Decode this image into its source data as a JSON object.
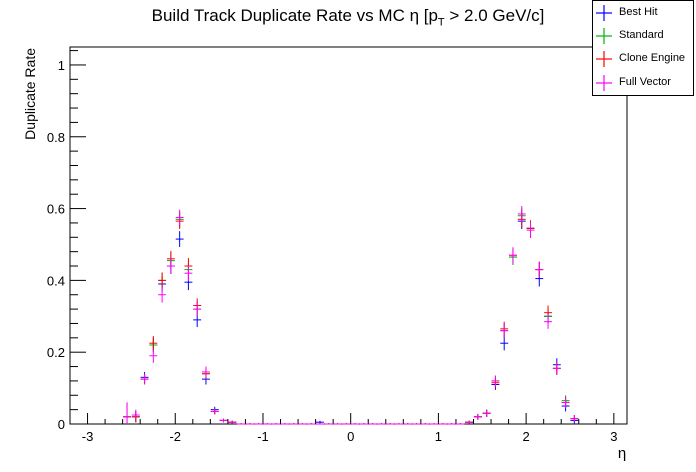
{
  "chart_data": {
    "type": "scatter",
    "title_main": "Build Track Duplicate Rate vs MC η [p",
    "title_sub": "T",
    "title_tail": " > 2.0 GeV/c]",
    "xlabel": "η",
    "ylabel": "Duplicate Rate",
    "xlim": [
      -3.2,
      3.15
    ],
    "ylim": [
      0,
      1.05
    ],
    "xticks": [
      -3,
      -2,
      -1,
      0,
      1,
      2,
      3
    ],
    "xtick_labels": [
      "-3",
      "-2",
      "-1",
      "0",
      "1",
      "2",
      "3"
    ],
    "yticks": [
      0,
      0.2,
      0.4,
      0.6,
      0.8,
      1
    ],
    "ytick_labels": [
      "0",
      "0.2",
      "0.4",
      "0.6",
      "0.8",
      "1"
    ],
    "legend_position": "top-right",
    "bin_half_width": 0.05,
    "x": [
      -2.55,
      -2.45,
      -2.35,
      -2.25,
      -2.15,
      -2.05,
      -1.95,
      -1.85,
      -1.75,
      -1.65,
      -1.55,
      -1.45,
      -1.35,
      -1.25,
      -1.15,
      -1.05,
      -0.95,
      -0.85,
      -0.75,
      -0.65,
      -0.55,
      -0.45,
      -0.35,
      -0.25,
      -0.15,
      -0.05,
      0.05,
      0.15,
      0.25,
      0.35,
      0.45,
      0.55,
      0.65,
      0.75,
      0.85,
      0.95,
      1.05,
      1.15,
      1.25,
      1.35,
      1.45,
      1.55,
      1.65,
      1.75,
      1.85,
      1.95,
      2.05,
      2.15,
      2.25,
      2.35,
      2.45,
      2.55
    ],
    "series": [
      {
        "name": "Best Hit",
        "color": "#0000ff",
        "values": [
          0.02,
          0.02,
          0.13,
          0.22,
          0.39,
          0.44,
          0.515,
          0.395,
          0.29,
          0.125,
          0.04,
          0.01,
          0.005,
          0.0,
          0.0,
          0.0,
          0.0,
          0.0,
          0.0,
          0.0,
          0.0,
          0.0,
          0.005,
          0.0,
          0.0,
          0.0,
          0.0,
          0.0,
          0.0,
          0.0,
          0.0,
          0.0,
          0.0,
          0.0,
          0.0,
          0.0,
          0.0,
          0.0,
          0.0,
          0.005,
          0.02,
          0.03,
          0.11,
          0.225,
          0.465,
          0.565,
          0.545,
          0.405,
          0.3,
          0.165,
          0.05,
          0.01
        ],
        "errors": [
          0.04,
          0.015,
          0.015,
          0.02,
          0.022,
          0.022,
          0.022,
          0.022,
          0.02,
          0.015,
          0.008,
          0.005,
          0.004,
          0.002,
          0.002,
          0.002,
          0.002,
          0.002,
          0.002,
          0.002,
          0.002,
          0.002,
          0.004,
          0.002,
          0.002,
          0.002,
          0.002,
          0.002,
          0.002,
          0.002,
          0.002,
          0.002,
          0.002,
          0.002,
          0.002,
          0.002,
          0.002,
          0.002,
          0.002,
          0.004,
          0.008,
          0.01,
          0.015,
          0.02,
          0.022,
          0.022,
          0.022,
          0.022,
          0.02,
          0.018,
          0.015,
          0.01
        ]
      },
      {
        "name": "Standard",
        "color": "#00b400",
        "values": [
          0.02,
          0.02,
          0.125,
          0.22,
          0.4,
          0.455,
          0.57,
          0.43,
          0.32,
          0.14,
          0.035,
          0.01,
          0.005,
          0.0,
          0.0,
          0.0,
          0.0,
          0.0,
          0.0,
          0.0,
          0.0,
          0.0,
          0.0,
          0.0,
          0.0,
          0.0,
          0.0,
          0.0,
          0.0,
          0.0,
          0.0,
          0.0,
          0.0,
          0.0,
          0.0,
          0.0,
          0.0,
          0.0,
          0.0,
          0.005,
          0.02,
          0.03,
          0.12,
          0.26,
          0.465,
          0.58,
          0.545,
          0.43,
          0.3,
          0.155,
          0.065,
          0.015
        ],
        "errors": [
          0.04,
          0.015,
          0.015,
          0.02,
          0.022,
          0.022,
          0.022,
          0.022,
          0.02,
          0.015,
          0.008,
          0.005,
          0.004,
          0.002,
          0.002,
          0.002,
          0.002,
          0.002,
          0.002,
          0.002,
          0.002,
          0.002,
          0.002,
          0.002,
          0.002,
          0.002,
          0.002,
          0.002,
          0.002,
          0.002,
          0.002,
          0.002,
          0.002,
          0.002,
          0.002,
          0.002,
          0.002,
          0.002,
          0.002,
          0.004,
          0.008,
          0.01,
          0.015,
          0.02,
          0.022,
          0.022,
          0.022,
          0.022,
          0.02,
          0.018,
          0.015,
          0.01
        ]
      },
      {
        "name": "Clone Engine",
        "color": "#ff0000",
        "values": [
          0.02,
          0.02,
          0.125,
          0.225,
          0.4,
          0.46,
          0.565,
          0.44,
          0.33,
          0.14,
          0.035,
          0.01,
          0.005,
          0.0,
          0.0,
          0.0,
          0.0,
          0.0,
          0.0,
          0.0,
          0.0,
          0.0,
          0.0,
          0.0,
          0.0,
          0.0,
          0.0,
          0.0,
          0.0,
          0.0,
          0.0,
          0.0,
          0.0,
          0.0,
          0.0,
          0.0,
          0.0,
          0.0,
          0.0,
          0.005,
          0.02,
          0.03,
          0.115,
          0.265,
          0.47,
          0.57,
          0.545,
          0.43,
          0.31,
          0.155,
          0.06,
          0.015
        ],
        "errors": [
          0.04,
          0.015,
          0.015,
          0.02,
          0.022,
          0.022,
          0.022,
          0.022,
          0.02,
          0.015,
          0.008,
          0.005,
          0.004,
          0.002,
          0.002,
          0.002,
          0.002,
          0.002,
          0.002,
          0.002,
          0.002,
          0.002,
          0.002,
          0.002,
          0.002,
          0.002,
          0.002,
          0.002,
          0.002,
          0.002,
          0.002,
          0.002,
          0.002,
          0.002,
          0.002,
          0.002,
          0.002,
          0.002,
          0.002,
          0.004,
          0.008,
          0.01,
          0.015,
          0.02,
          0.022,
          0.022,
          0.022,
          0.022,
          0.02,
          0.018,
          0.015,
          0.01
        ]
      },
      {
        "name": "Full Vector",
        "color": "#ff00ff",
        "values": [
          0.02,
          0.025,
          0.125,
          0.19,
          0.36,
          0.44,
          0.575,
          0.42,
          0.32,
          0.145,
          0.035,
          0.01,
          0.005,
          0.0,
          0.0,
          0.0,
          0.0,
          0.0,
          0.0,
          0.0,
          0.0,
          0.0,
          0.0,
          0.0,
          0.0,
          0.0,
          0.0,
          0.0,
          0.0,
          0.0,
          0.0,
          0.0,
          0.0,
          0.0,
          0.0,
          0.0,
          0.0,
          0.0,
          0.0,
          0.005,
          0.02,
          0.03,
          0.12,
          0.26,
          0.47,
          0.585,
          0.54,
          0.43,
          0.285,
          0.155,
          0.06,
          0.015
        ],
        "errors": [
          0.04,
          0.015,
          0.015,
          0.02,
          0.022,
          0.022,
          0.022,
          0.022,
          0.02,
          0.015,
          0.008,
          0.005,
          0.004,
          0.002,
          0.002,
          0.002,
          0.002,
          0.002,
          0.002,
          0.002,
          0.002,
          0.002,
          0.002,
          0.002,
          0.002,
          0.002,
          0.002,
          0.002,
          0.002,
          0.002,
          0.002,
          0.002,
          0.002,
          0.002,
          0.002,
          0.002,
          0.002,
          0.002,
          0.002,
          0.004,
          0.008,
          0.01,
          0.015,
          0.02,
          0.022,
          0.022,
          0.022,
          0.022,
          0.02,
          0.018,
          0.015,
          0.01
        ]
      }
    ]
  }
}
